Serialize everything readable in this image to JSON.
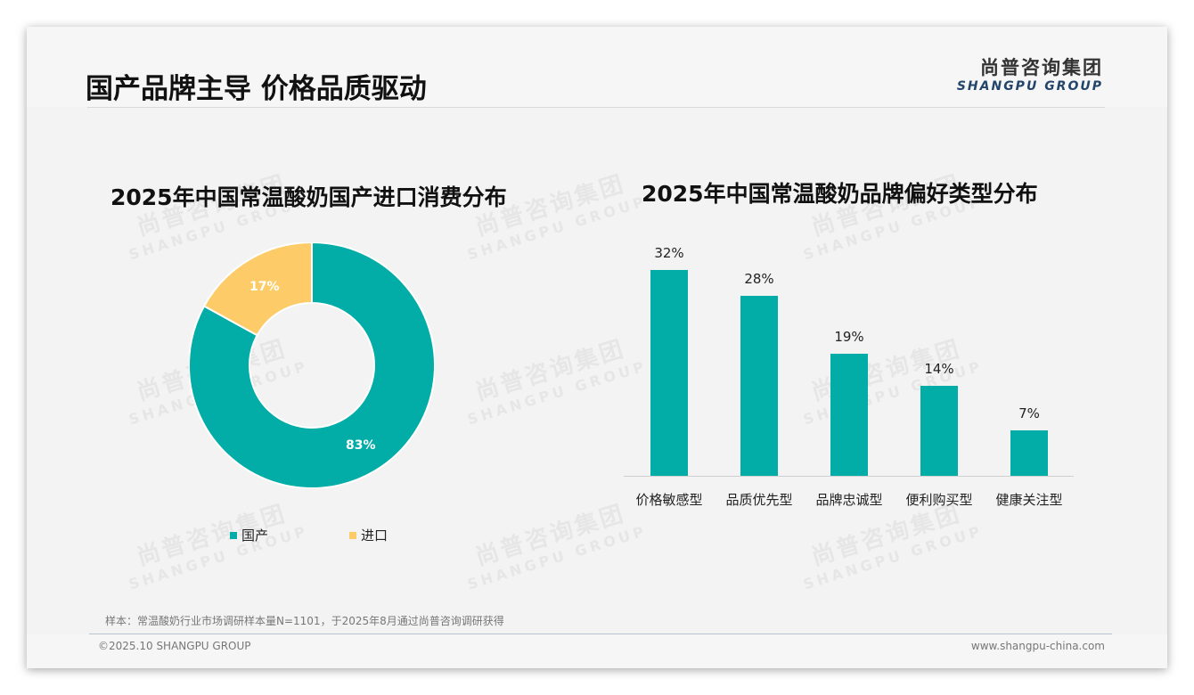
{
  "header": {
    "title": "国产品牌主导 价格品质驱动",
    "logo_cn": "尚普咨询集团",
    "logo_en": "SHANGPU GROUP"
  },
  "watermark": {
    "cn": "尚普咨询集团",
    "en": "SHANGPU GROUP"
  },
  "colors": {
    "teal": "#03ada7",
    "yellow": "#fdcc69",
    "background": "#f3f3f3",
    "logo_blue": "#24456b"
  },
  "left_chart": {
    "title": "2025年中国常温酸奶国产进口消费分布",
    "slices": [
      {
        "label": "国产",
        "value": 83,
        "display": "83%"
      },
      {
        "label": "进口",
        "value": 17,
        "display": "17%"
      }
    ]
  },
  "right_chart": {
    "title": "2025年中国常温酸奶品牌偏好类型分布",
    "bars": [
      {
        "label": "价格敏感型",
        "value": 32,
        "display": "32%"
      },
      {
        "label": "品质优先型",
        "value": 28,
        "display": "28%"
      },
      {
        "label": "品牌忠诚型",
        "value": 19,
        "display": "19%"
      },
      {
        "label": "便利购买型",
        "value": 14,
        "display": "14%"
      },
      {
        "label": "健康关注型",
        "value": 7,
        "display": "7%"
      }
    ]
  },
  "chart_data": [
    {
      "type": "pie",
      "title": "2025年中国常温酸奶国产进口消费分布",
      "categories": [
        "国产",
        "进口"
      ],
      "values": [
        83,
        17
      ],
      "unit": "%",
      "donut": true,
      "legend_position": "bottom"
    },
    {
      "type": "bar",
      "title": "2025年中国常温酸奶品牌偏好类型分布",
      "categories": [
        "价格敏感型",
        "品质优先型",
        "品牌忠诚型",
        "便利购买型",
        "健康关注型"
      ],
      "values": [
        32,
        28,
        19,
        14,
        7
      ],
      "unit": "%",
      "xlabel": "",
      "ylabel": "",
      "grid": false,
      "data_labels": true
    }
  ],
  "footer": {
    "source_note": "样本：常温酸奶行业市场调研样本量N=1101，于2025年8月通过尚普咨询调研获得",
    "copyright": "©2025.10 SHANGPU GROUP",
    "website": "www.shangpu-china.com"
  }
}
